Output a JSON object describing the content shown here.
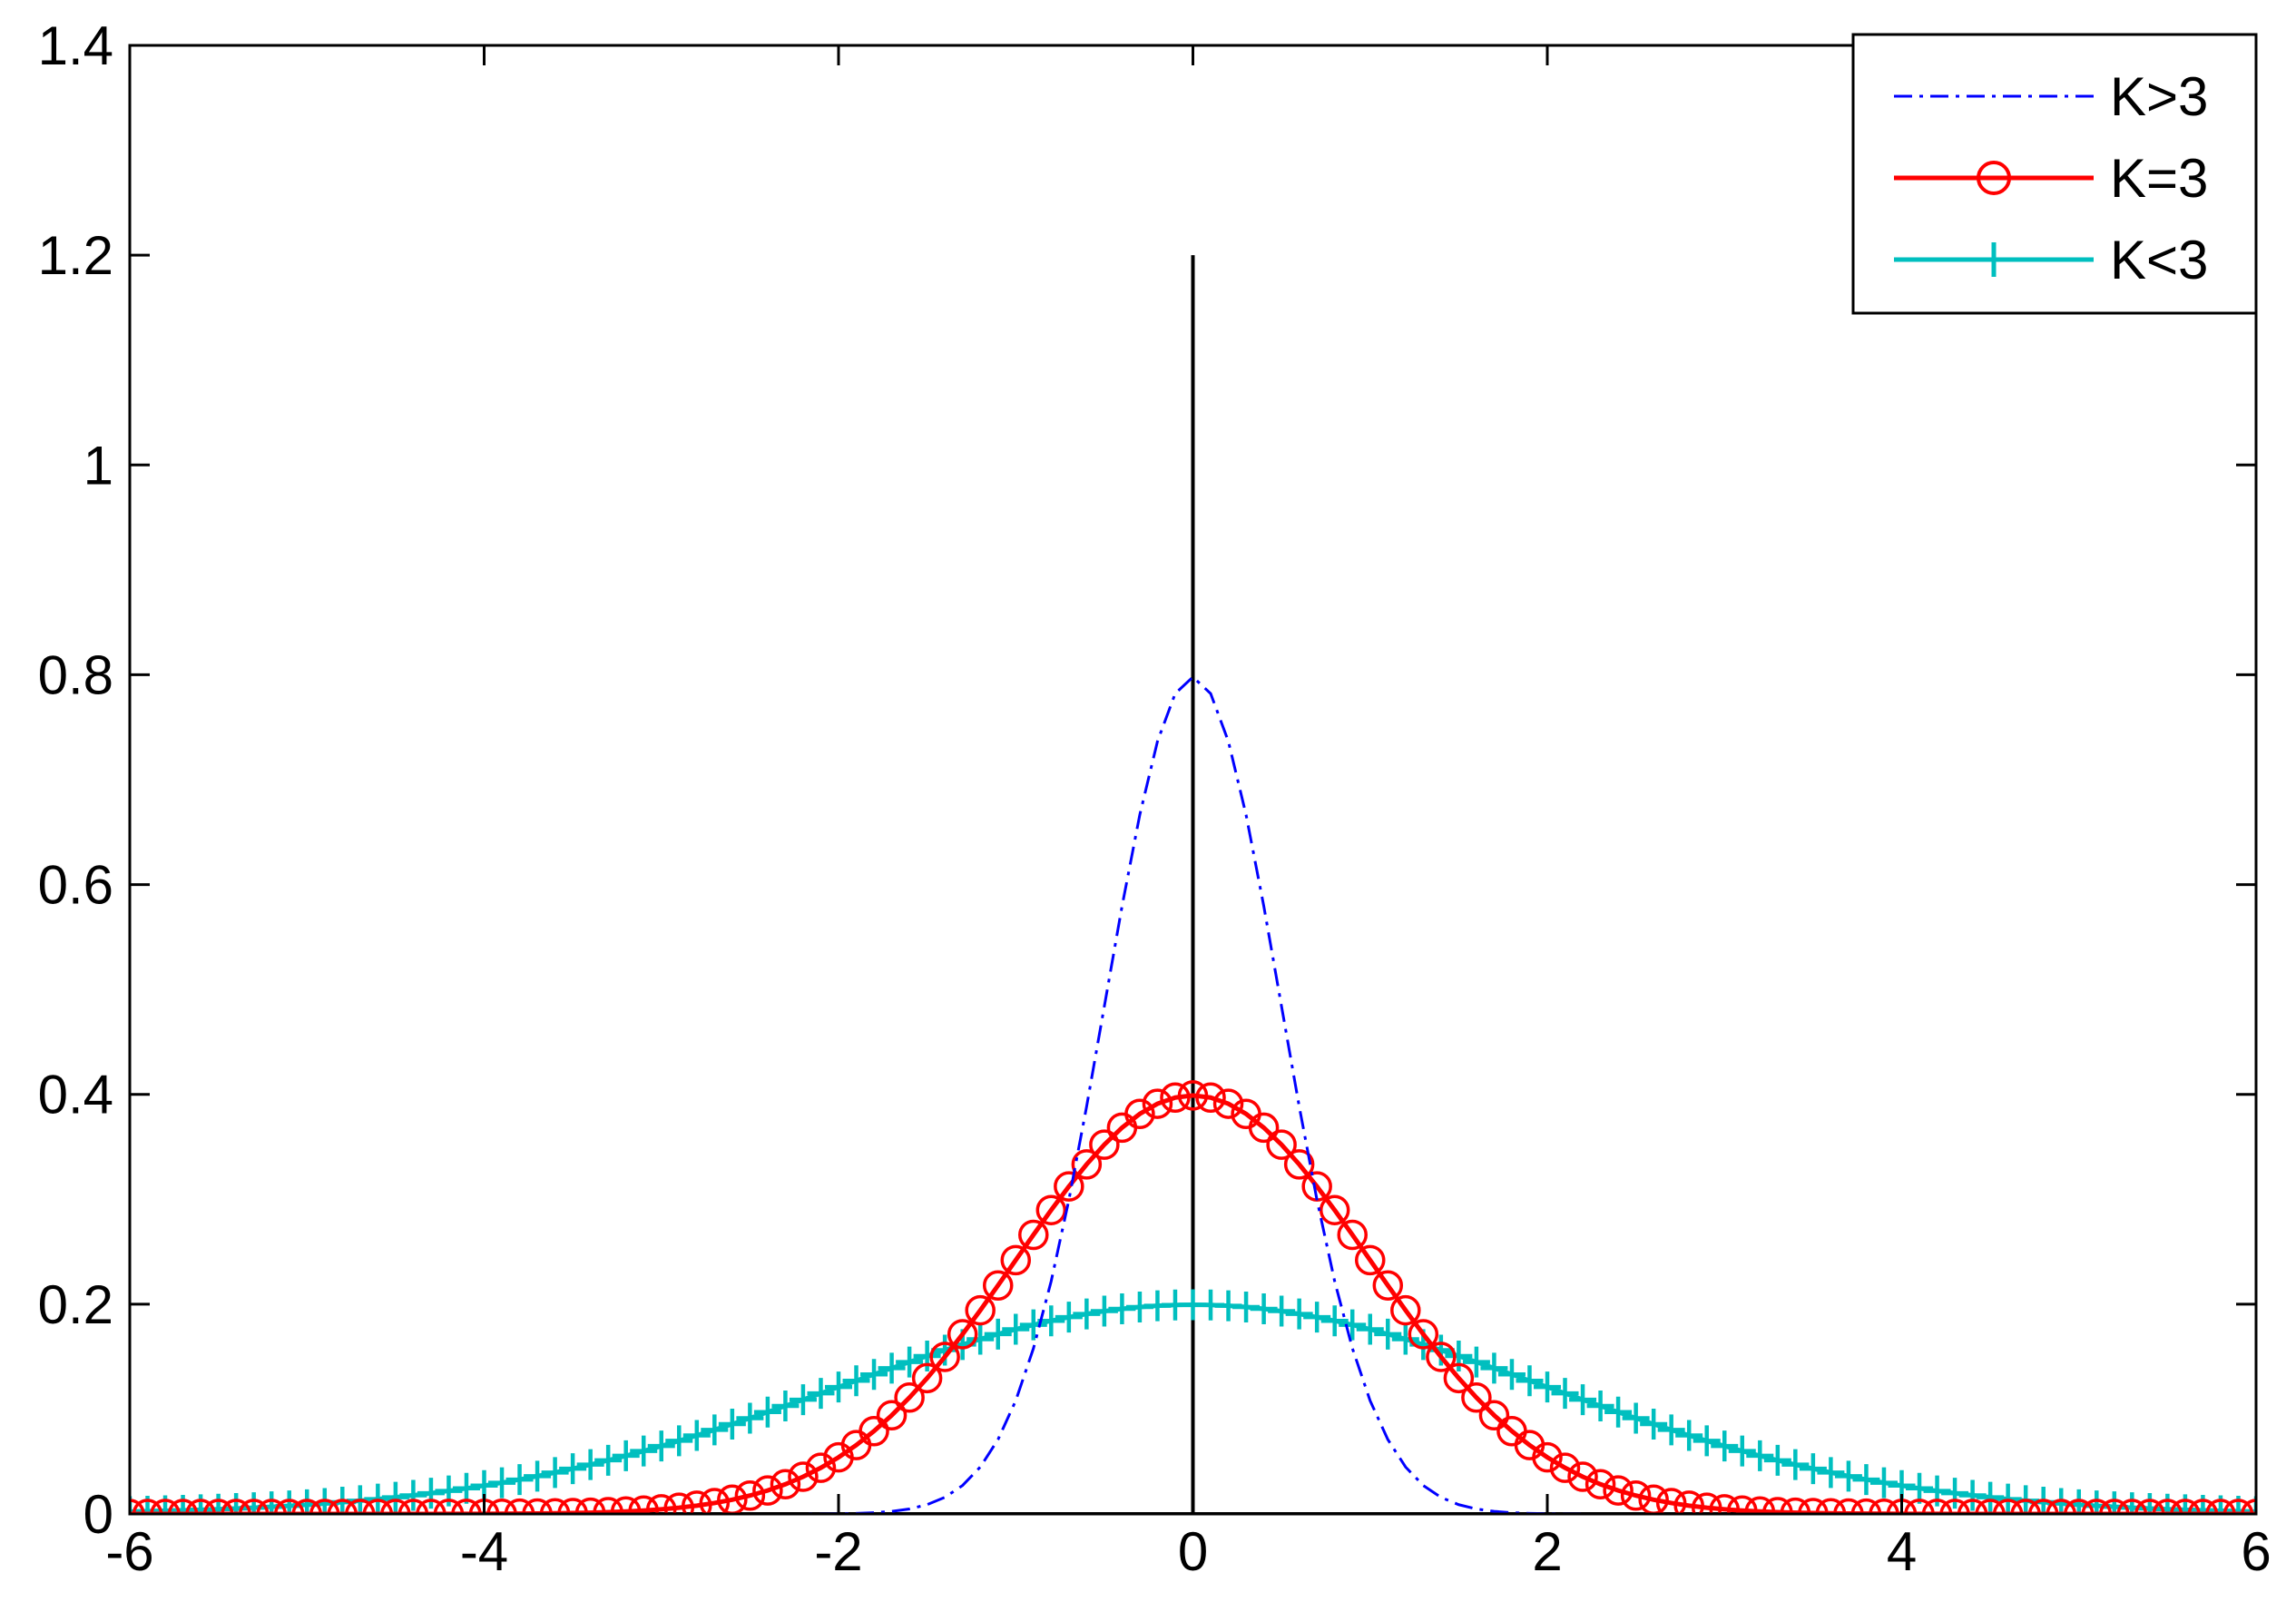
{
  "chart_data": {
    "type": "line",
    "title": "",
    "xlabel": "",
    "ylabel": "",
    "xlim": [
      -6,
      6
    ],
    "ylim": [
      0,
      1.4
    ],
    "x_ticks": [
      -6,
      -4,
      -2,
      0,
      2,
      4,
      6
    ],
    "y_ticks": [
      0,
      0.2,
      0.4,
      0.6,
      0.8,
      1,
      1.2,
      1.4
    ],
    "x_tick_labels": [
      "-6",
      "-4",
      "-2",
      "0",
      "2",
      "4",
      "6"
    ],
    "y_tick_labels": [
      "0",
      "0.2",
      "0.4",
      "0.6",
      "0.8",
      "1",
      "1.2",
      "1.4"
    ],
    "grid": false,
    "legend_position": "top-right",
    "x_sample": {
      "start": -6,
      "end": 6,
      "step": 0.1
    },
    "series": [
      {
        "name": "K>3",
        "color": "#0000ff",
        "line_style": "dash-dot",
        "marker": "none",
        "distribution": "normal",
        "mean": 0,
        "sd": 0.5,
        "peak": 0.798
      },
      {
        "name": "K=3",
        "color": "#ff0000",
        "line_style": "solid",
        "marker": "circle",
        "distribution": "normal",
        "mean": 0,
        "sd": 1,
        "peak": 0.399
      },
      {
        "name": "K<3",
        "color": "#00bfbf",
        "line_style": "solid",
        "marker": "plus",
        "distribution": "normal",
        "mean": 0,
        "sd": 2,
        "peak": 0.199
      }
    ],
    "reference_lines": [
      {
        "type": "vertical",
        "x": 0,
        "y_from": 0,
        "y_to": 1.2,
        "color": "#000000"
      },
      {
        "type": "horizontal",
        "y": 0,
        "x_from": -6,
        "x_to": 6,
        "color": "#000000"
      }
    ]
  }
}
